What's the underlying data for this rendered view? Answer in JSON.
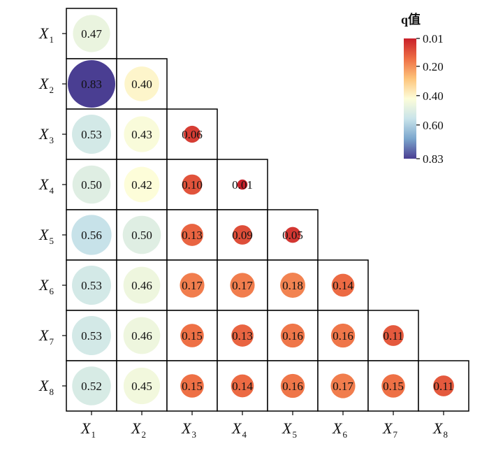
{
  "chart_data": {
    "type": "heatmap",
    "subtype": "lower-triangular correlation-style bubble matrix",
    "row_labels": [
      {
        "main": "X",
        "sub": "1"
      },
      {
        "main": "X",
        "sub": "2"
      },
      {
        "main": "X",
        "sub": "3"
      },
      {
        "main": "X",
        "sub": "4"
      },
      {
        "main": "X",
        "sub": "5"
      },
      {
        "main": "X",
        "sub": "6"
      },
      {
        "main": "X",
        "sub": "7"
      },
      {
        "main": "X",
        "sub": "8"
      }
    ],
    "col_labels": [
      {
        "main": "X",
        "sub": "1"
      },
      {
        "main": "X",
        "sub": "2"
      },
      {
        "main": "X",
        "sub": "3"
      },
      {
        "main": "X",
        "sub": "4"
      },
      {
        "main": "X",
        "sub": "5"
      },
      {
        "main": "X",
        "sub": "6"
      },
      {
        "main": "X",
        "sub": "7"
      },
      {
        "main": "X",
        "sub": "8"
      }
    ],
    "values": [
      [
        "0.47"
      ],
      [
        "0.83",
        "0.40"
      ],
      [
        "0.53",
        "0.43",
        "0.06"
      ],
      [
        "0.50",
        "0.42",
        "0.10",
        "0.01"
      ],
      [
        "0.56",
        "0.50",
        "0.13",
        "0.09",
        "0.05"
      ],
      [
        "0.53",
        "0.46",
        "0.17",
        "0.17",
        "0.18",
        "0.14"
      ],
      [
        "0.53",
        "0.46",
        "0.15",
        "0.13",
        "0.16",
        "0.16",
        "0.11"
      ],
      [
        "0.52",
        "0.45",
        "0.15",
        "0.14",
        "0.16",
        "0.17",
        "0.15",
        "0.11"
      ]
    ],
    "colorbar": {
      "title": "q值",
      "min": 0.01,
      "max": 0.83,
      "direction": "low values at top",
      "ticks": [
        "0.01",
        "0.20",
        "0.40",
        "0.60",
        "0.83"
      ],
      "colormap": "RdYlBu (red = low, blue = high)"
    },
    "size_encoding": "circle size grows with q value",
    "grid": false,
    "legend_position": "top-right"
  },
  "colors": {
    "colormap_stops": [
      "#c8202a",
      "#ee6e44",
      "#fdc47a",
      "#fdfdd9",
      "#c9e4ea",
      "#7ba6cd",
      "#4a3e92"
    ],
    "value_text_on_dark": "#ffffff",
    "value_text_default": "#111111",
    "cell_border": "#000000"
  }
}
